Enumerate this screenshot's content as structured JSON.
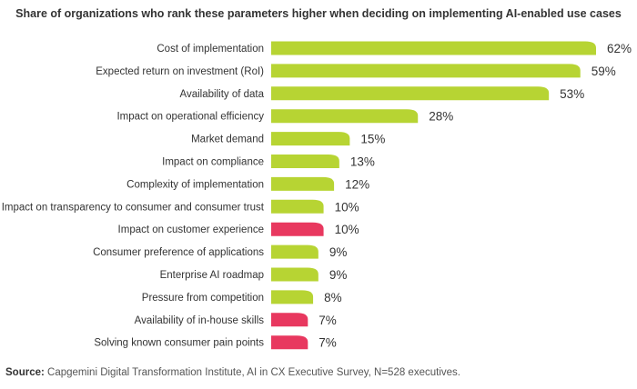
{
  "title": "Share of organizations who rank these parameters higher when deciding on implementing AI-enabled use cases",
  "source_label": "Source:",
  "source_text": "Capgemini Digital Transformation Institute, AI in CX Executive Survey, N=528 executives.",
  "colors": {
    "green": "#b7d433",
    "red": "#e8385f"
  },
  "chart_data": {
    "type": "bar",
    "orientation": "horizontal",
    "categories": [
      "Cost of implementation",
      "Expected return on investment (RoI)",
      "Availability of data",
      "Impact on operational efficiency",
      "Market demand",
      "Impact on compliance",
      "Complexity of implementation",
      "Impact on transparency to consumer and consumer trust",
      "Impact on customer experience",
      "Consumer preference of applications",
      "Enterprise AI roadmap",
      "Pressure from competition",
      "Availability of in-house skills",
      "Solving known consumer pain points"
    ],
    "values": [
      62,
      59,
      53,
      28,
      15,
      13,
      12,
      10,
      10,
      9,
      9,
      8,
      7,
      7
    ],
    "labels": [
      "62%",
      "59%",
      "53%",
      "28%",
      "15%",
      "13%",
      "12%",
      "10%",
      "10%",
      "9%",
      "9%",
      "8%",
      "7%",
      "7%"
    ],
    "bar_colors": [
      "green",
      "green",
      "green",
      "green",
      "green",
      "green",
      "green",
      "green",
      "red",
      "green",
      "green",
      "green",
      "red",
      "red"
    ],
    "xlim": [
      0,
      62
    ]
  }
}
